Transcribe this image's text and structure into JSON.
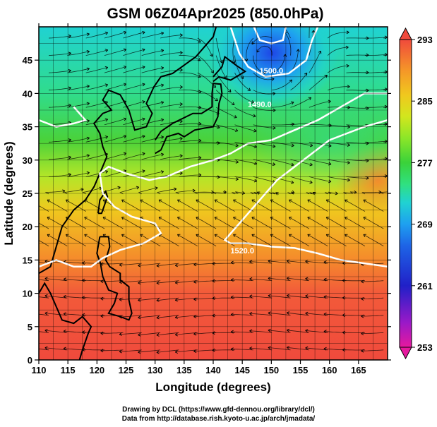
{
  "chart_data": {
    "type": "heatmap",
    "title": "GSM 06Z04Apr2025 (850.0hPa)",
    "xlabel": "Longitude (degrees)",
    "ylabel": "Latitude  (degrees)",
    "xlim": [
      110,
      170
    ],
    "ylim": [
      0,
      50
    ],
    "x_ticks": [
      110,
      115,
      120,
      125,
      130,
      135,
      140,
      145,
      150,
      155,
      160,
      165
    ],
    "x_tick_labels": [
      "110",
      "115",
      "120",
      "125",
      "130",
      "135",
      "140",
      "145",
      "150",
      "155",
      "160",
      "165"
    ],
    "y_ticks": [
      0,
      5,
      10,
      15,
      20,
      25,
      30,
      35,
      40,
      45
    ],
    "y_tick_labels": [
      "0",
      "5",
      "10",
      "15",
      "20",
      "25",
      "30",
      "35",
      "40",
      "45"
    ],
    "grid": true,
    "field": "temperature (K) with wind streamlines",
    "colorbar": {
      "min": 253,
      "max": 293,
      "ticks": [
        253,
        261,
        269,
        277,
        285,
        293
      ],
      "tick_labels": [
        "253",
        "261",
        "269",
        "277",
        "285",
        "293"
      ],
      "colors": [
        "#e6199e",
        "#9a19c8",
        "#2020c8",
        "#1e64e6",
        "#1ea0f0",
        "#20d2d2",
        "#30e080",
        "#3ad23a",
        "#8ce628",
        "#d2e61e",
        "#f0c81e",
        "#f59628",
        "#f5643c",
        "#f0503c"
      ]
    },
    "contours": [
      {
        "label": "1500.0",
        "lon": 150,
        "lat": 43
      },
      {
        "label": "1490.0",
        "lon": 148,
        "lat": 38
      },
      {
        "label": "1520.0",
        "lon": 145,
        "lat": 16
      }
    ]
  },
  "credits": {
    "line1": "Drawing by DCL (https://www.gfd-dennou.org/library/dcl/)",
    "line2": "Data from http://database.rish.kyoto-u.ac.jp/arch/jmadata/"
  }
}
